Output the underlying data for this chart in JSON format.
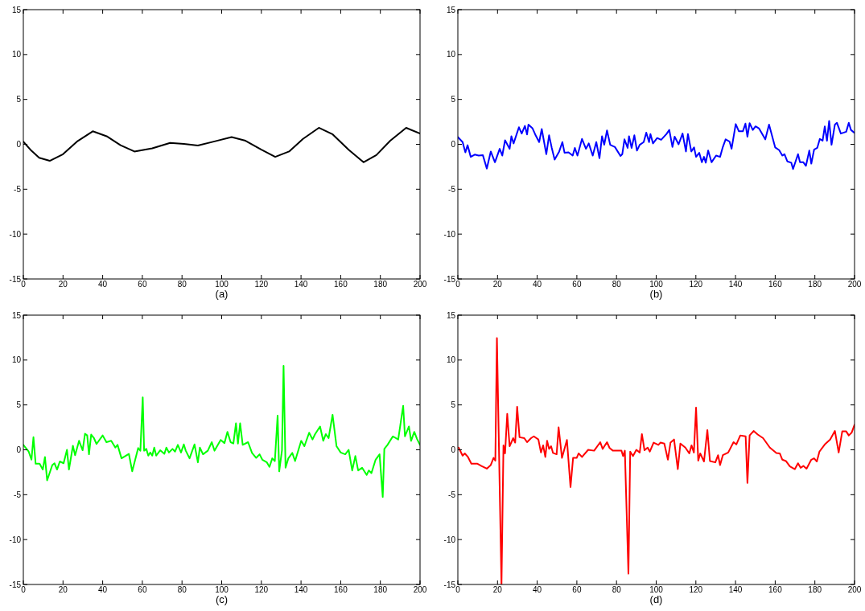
{
  "chart_data": [
    {
      "type": "line",
      "xlabel": "(a)",
      "xlim": [
        0,
        200
      ],
      "ylim": [
        -15,
        15
      ],
      "xticks": [
        0,
        20,
        40,
        60,
        80,
        100,
        120,
        140,
        160,
        180,
        200
      ],
      "yticks": [
        -15,
        -10,
        -5,
        0,
        5,
        10,
        15
      ],
      "grid": false,
      "series": [
        {
          "color": "#000000",
          "x": [
            0,
            4,
            8,
            13.3,
            20,
            27,
            35,
            42,
            49,
            56,
            65,
            74,
            81,
            88,
            96,
            105,
            112,
            120,
            127,
            134,
            141,
            149,
            156,
            164,
            171.5,
            178,
            185,
            193,
            200
          ],
          "values": [
            0.3,
            -0.7,
            -1.5,
            -1.84,
            -1.1,
            0.3,
            1.45,
            0.9,
            -0.1,
            -0.8,
            -0.45,
            0.16,
            0.05,
            -0.13,
            0.3,
            0.8,
            0.4,
            -0.6,
            -1.4,
            -0.8,
            0.6,
            1.84,
            1.1,
            -0.6,
            -2,
            -1.2,
            0.4,
            1.84,
            1.2
          ]
        }
      ]
    },
    {
      "type": "line",
      "xlabel": "(b)",
      "xlim": [
        0,
        200
      ],
      "ylim": [
        -15,
        15
      ],
      "xticks": [
        0,
        20,
        40,
        60,
        80,
        100,
        120,
        140,
        160,
        180,
        200
      ],
      "yticks": [
        -15,
        -10,
        -5,
        0,
        5,
        10,
        15
      ],
      "grid": false,
      "series": [
        {
          "color": "#0000ff",
          "x": [
            0,
            2.4,
            3.8,
            4.9,
            6.5,
            8.5,
            10.5,
            12.6,
            14.6,
            16.6,
            18.7,
            21.1,
            22.4,
            23.8,
            26.1,
            27,
            28.1,
            30.8,
            32.2,
            33.8,
            34.9,
            35.6,
            37.6,
            39,
            41,
            42.3,
            44.6,
            46,
            47.3,
            48.8,
            51.1,
            52.7,
            53.8,
            55.8,
            57.9,
            59,
            60.3,
            62.6,
            64.6,
            66,
            68,
            69.8,
            71.4,
            72.7,
            73.8,
            75.2,
            76.8,
            79.2,
            82,
            82.9,
            84,
            85.6,
            86.3,
            87.6,
            89,
            90.3,
            91.7,
            93.7,
            95,
            96.4,
            97.1,
            98.4,
            100.5,
            102.5,
            105.2,
            106.6,
            108.2,
            109.3,
            111.3,
            113.3,
            115,
            116,
            117.7,
            119.1,
            120.1,
            121.7,
            123,
            124.1,
            125,
            126.2,
            127.9,
            130.2,
            132.2,
            133.6,
            135,
            137,
            138,
            140.1,
            141.7,
            143.7,
            145,
            146,
            147.1,
            148.7,
            150.1,
            151.9,
            155,
            156.9,
            160,
            162,
            163.6,
            164.7,
            166.1,
            168.1,
            169,
            171.5,
            172.5,
            174.2,
            175.5,
            177.2,
            178.2,
            179.6,
            181.2,
            182.5,
            183.9,
            185,
            186.1,
            187.2,
            188.4,
            190.1,
            191.1,
            193.1,
            195.8,
            197.1,
            198.2,
            199.8
          ],
          "values": [
            0.8,
            0.25,
            -0.9,
            -0.1,
            -1.4,
            -1.15,
            -1.25,
            -1.2,
            -2.7,
            -0.8,
            -2,
            -0.5,
            -1.25,
            0.45,
            -0.5,
            0.9,
            0.1,
            1.9,
            1.2,
            2.05,
            1.1,
            2.2,
            1.8,
            1.1,
            0.25,
            1.7,
            -1.1,
            1,
            -0.35,
            -1.7,
            -0.8,
            0.25,
            -0.95,
            -0.9,
            -1.25,
            -0.4,
            -1.25,
            0.6,
            -0.5,
            0.1,
            -1.25,
            0.25,
            -1.55,
            0.9,
            -0.05,
            1.55,
            -0.05,
            -0.3,
            -1.3,
            -1.1,
            0.55,
            -0.4,
            0.9,
            -0.4,
            1,
            -0.7,
            -0.05,
            0.25,
            1.3,
            0.25,
            1.15,
            0.1,
            0.7,
            0.5,
            1.15,
            1.6,
            -0.3,
            0.85,
            0,
            1.2,
            -0.8,
            1.15,
            -0.8,
            -0.35,
            -1.4,
            -0.95,
            -2,
            -1.4,
            -2.05,
            -0.7,
            -2,
            -1.25,
            -1.4,
            -0.3,
            0.55,
            0.3,
            -0.5,
            2.25,
            1.45,
            1.45,
            2.3,
            0.85,
            2.35,
            1.6,
            2,
            1.75,
            0.55,
            2.2,
            -0.35,
            -0.65,
            -1.25,
            -1.1,
            -1.9,
            -2.05,
            -2.75,
            -1.1,
            -2,
            -2,
            -2.4,
            -0.7,
            -2.15,
            -0.6,
            -0.4,
            0.6,
            0.4,
            2,
            0.4,
            2.6,
            -0.05,
            2.2,
            2.4,
            1.2,
            1.4,
            2.4,
            1.6,
            1.3
          ]
        }
      ]
    },
    {
      "type": "line",
      "xlabel": "(c)",
      "xlim": [
        0,
        200
      ],
      "ylim": [
        -15,
        15
      ],
      "xticks": [
        0,
        20,
        40,
        60,
        80,
        100,
        120,
        140,
        160,
        180,
        200
      ],
      "yticks": [
        -15,
        -10,
        -5,
        0,
        5,
        10,
        15
      ],
      "grid": false,
      "series": [
        {
          "color": "#00ff00",
          "x": [
            0,
            2.7,
            4.1,
            5.1,
            6.2,
            8.2,
            9.8,
            10.9,
            12,
            14.6,
            15.7,
            17,
            18.4,
            20.3,
            22,
            23,
            25,
            26.1,
            28.1,
            29.9,
            31.1,
            32.2,
            33.1,
            34.2,
            35.6,
            36.9,
            40,
            41.9,
            44.3,
            46.4,
            47.5,
            49.5,
            53.2,
            54.9,
            57.9,
            59,
            60.2,
            60.9,
            62,
            63,
            64,
            65,
            66,
            67,
            69,
            71.1,
            72.1,
            73.4,
            75.2,
            76.5,
            77.9,
            79.5,
            80.9,
            81.9,
            83.8,
            86.3,
            88,
            89,
            90.6,
            93,
            95,
            96.4,
            99.5,
            101.4,
            102.9,
            104.5,
            105.9,
            107.2,
            108.2,
            109.3,
            110.6,
            113.3,
            115.3,
            117.4,
            119.1,
            120.5,
            122.8,
            124.1,
            125.5,
            126.8,
            128.2,
            129,
            130.4,
            131.2,
            132.2,
            133.6,
            135.6,
            137,
            140.1,
            141.7,
            144.1,
            145.8,
            147.1,
            149.6,
            151.2,
            152.5,
            153.9,
            155.9,
            157.9,
            160,
            162.3,
            164,
            165.8,
            167.4,
            168.8,
            170.8,
            173.1,
            174.2,
            175.5,
            177.6,
            179.6,
            181.2,
            182,
            183.6,
            186.3,
            189,
            191.5,
            192.4,
            194.4,
            195.5,
            197.1,
            198.5,
            200
          ],
          "values": [
            0.55,
            -0.2,
            -1.1,
            1.4,
            -1.55,
            -1.55,
            -2.2,
            -0.8,
            -3.4,
            -1.7,
            -1.5,
            -2.2,
            -1.3,
            -1.5,
            0,
            -2.2,
            0.45,
            -0.6,
            1,
            -0.05,
            1.8,
            1.6,
            -0.5,
            1.7,
            1.3,
            0.65,
            1.6,
            0.85,
            1,
            0.25,
            0.55,
            -0.95,
            -0.45,
            -2.4,
            0.2,
            -0.1,
            5.85,
            -0.1,
            0.1,
            -0.65,
            -0.3,
            -0.65,
            0.25,
            -0.65,
            -0.05,
            -0.45,
            0.25,
            -0.3,
            0.1,
            -0.2,
            0.55,
            -0.3,
            0.6,
            -0.1,
            -0.95,
            0.6,
            -1.4,
            0.25,
            -0.5,
            -0.1,
            0.85,
            -0.1,
            1.1,
            0.75,
            2,
            0.85,
            0.7,
            2.95,
            0.7,
            2.95,
            0.55,
            0.85,
            -0.35,
            -0.9,
            -0.5,
            -1.1,
            -1.4,
            -1.9,
            -0.95,
            -1.25,
            3.8,
            -2.4,
            -0.05,
            9.35,
            -2,
            -0.95,
            -0.35,
            -1.25,
            1,
            0.4,
            1.9,
            1.15,
            1.75,
            2.6,
            1,
            1.75,
            1.3,
            3.9,
            0.4,
            -0.3,
            -0.5,
            0,
            -2.3,
            -0.7,
            -2.3,
            -2,
            -2.8,
            -2.3,
            -2.6,
            -1.1,
            -0.5,
            -5.25,
            0.1,
            0.55,
            1.5,
            1.15,
            4.9,
            1.5,
            2.6,
            1,
            2,
            1.2,
            0.55
          ]
        }
      ]
    },
    {
      "type": "line",
      "xlabel": "(d)",
      "xlim": [
        0,
        200
      ],
      "ylim": [
        -15,
        15
      ],
      "xticks": [
        0,
        20,
        40,
        60,
        80,
        100,
        120,
        140,
        160,
        180,
        200
      ],
      "yticks": [
        -15,
        -10,
        -5,
        0,
        5,
        10,
        15
      ],
      "grid": false,
      "series": [
        {
          "color": "#ff0000",
          "x": [
            0.4,
            2.4,
            3.5,
            5.1,
            6.8,
            9.9,
            11.9,
            14.6,
            16.6,
            18,
            18.9,
            19.7,
            22,
            23,
            23.8,
            24.9,
            26.1,
            27.9,
            28.9,
            29.9,
            31.1,
            33.5,
            34.9,
            36.9,
            38.3,
            40.6,
            41.9,
            43,
            44.1,
            45,
            46,
            47,
            48,
            49.8,
            50.8,
            52.5,
            55,
            56.8,
            58.1,
            59.9,
            60.9,
            62.6,
            65.7,
            68.7,
            71.8,
            73,
            75.2,
            76.5,
            78.2,
            82.5,
            83.3,
            84.2,
            86,
            86.9,
            88.3,
            90,
            91.7,
            92.8,
            94.1,
            95.7,
            96.8,
            98.7,
            101.1,
            102.2,
            104.1,
            105.9,
            107.2,
            109,
            110.9,
            112.2,
            114.7,
            116.7,
            117.8,
            119,
            120.1,
            121.2,
            122.2,
            124.1,
            125.8,
            127.1,
            129.8,
            131.2,
            132.2,
            133.6,
            136.3,
            139,
            140.4,
            142.4,
            145.1,
            146,
            147.1,
            149.1,
            151.2,
            153.9,
            157.3,
            160.6,
            162.3,
            163.6,
            165.4,
            167.4,
            169.9,
            171.5,
            172.8,
            174.2,
            175.8,
            178.2,
            179.6,
            181,
            182.3,
            185,
            187.7,
            190.1,
            192,
            193.8,
            195.8,
            197.1,
            198.5,
            200
          ],
          "values": [
            0.25,
            -0.65,
            -0.4,
            -0.8,
            -1.55,
            -1.55,
            -1.8,
            -2.1,
            -1.7,
            -0.9,
            -1.2,
            12.45,
            -15,
            0.5,
            -0.4,
            4,
            0.4,
            1.3,
            0.8,
            4.8,
            1.4,
            1.3,
            0.85,
            1.3,
            1.5,
            1.15,
            -0.3,
            0.5,
            -0.8,
            1,
            0.1,
            0.4,
            -0.35,
            -0.5,
            2.5,
            -0.9,
            1.1,
            -4.15,
            -0.9,
            -0.9,
            -0.4,
            -0.8,
            0,
            -0.1,
            0.85,
            0.1,
            0.85,
            0.2,
            -0.1,
            -0.1,
            -0.7,
            -0.1,
            -13.8,
            -0.2,
            -0.7,
            0,
            -0.3,
            1.75,
            -0.05,
            0.25,
            -0.2,
            0.8,
            0.55,
            0.8,
            0.7,
            -1.1,
            0.8,
            1.15,
            -2.15,
            0.7,
            0.25,
            -0.4,
            0.5,
            -0.3,
            4.7,
            -1.2,
            -0.4,
            -1.3,
            2.2,
            -1.25,
            -1.4,
            -0.6,
            -1.7,
            -0.6,
            -0.3,
            0.85,
            0.6,
            1.6,
            1.5,
            -3.7,
            1.6,
            2.1,
            1.7,
            1.3,
            0.25,
            -0.35,
            -0.4,
            -1.1,
            -1.25,
            -1.85,
            -2.15,
            -1.5,
            -2,
            -1.8,
            -2.1,
            -1.1,
            -0.95,
            -1.3,
            -0.2,
            0.6,
            1.15,
            2.1,
            -0.3,
            2.05,
            2.05,
            1.6,
            1.9,
            2.8
          ]
        }
      ]
    }
  ]
}
